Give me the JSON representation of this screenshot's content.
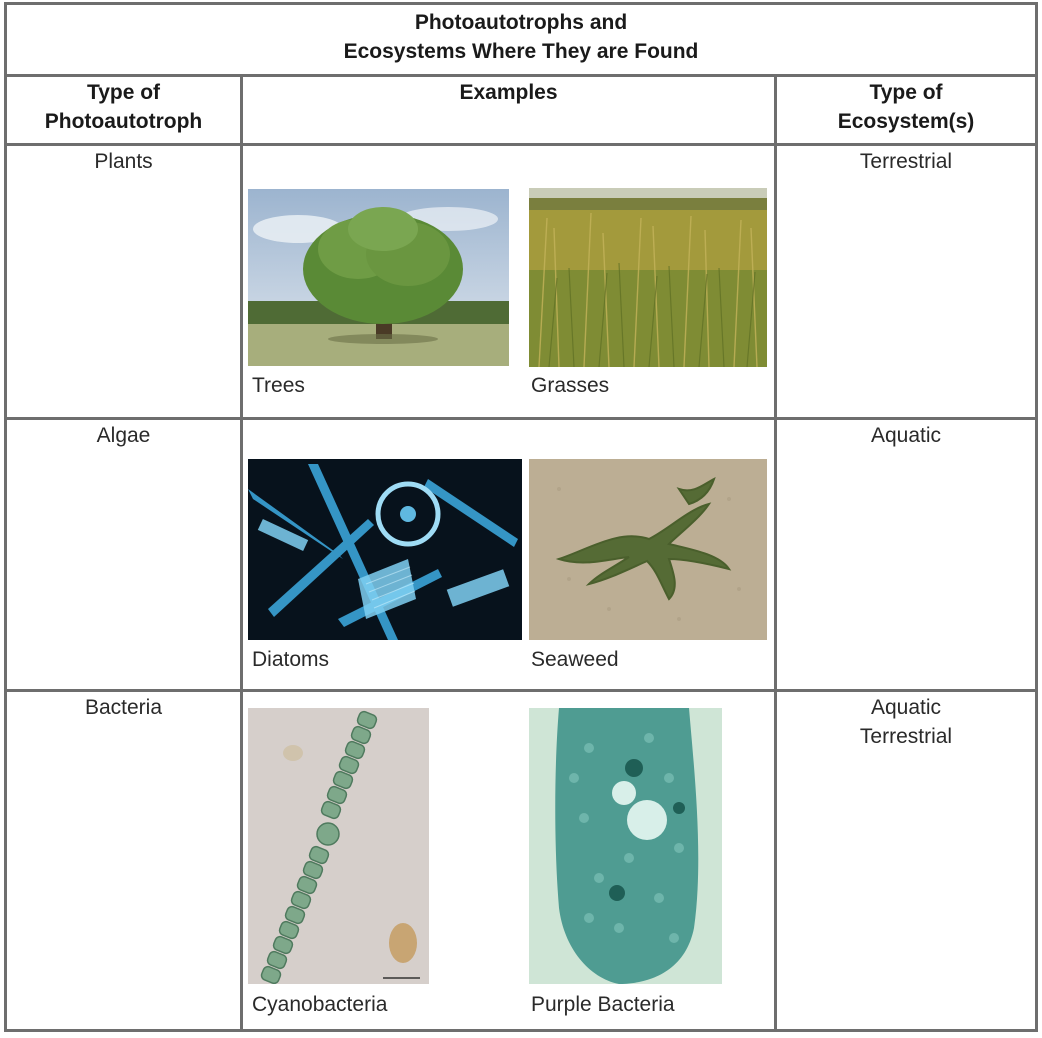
{
  "table": {
    "title_line1": "Photoautotrophs and",
    "title_line2": "Ecosystems Where They are Found",
    "headers": {
      "type_line1": "Type of",
      "type_line2": "Photoautotroph",
      "examples": "Examples",
      "eco_line1": "Type of",
      "eco_line2": "Ecosystem(s)"
    },
    "rows": [
      {
        "type": "Plants",
        "examples": [
          {
            "caption": "Trees",
            "image": "oak-tree-photo"
          },
          {
            "caption": "Grasses",
            "image": "grassland-photo"
          }
        ],
        "ecosystem_line1": "Terrestrial",
        "ecosystem_line2": ""
      },
      {
        "type": "Algae",
        "examples": [
          {
            "caption": "Diatoms",
            "image": "diatoms-micrograph"
          },
          {
            "caption": "Seaweed",
            "image": "seaweed-on-sand-photo"
          }
        ],
        "ecosystem_line1": "Aquatic",
        "ecosystem_line2": ""
      },
      {
        "type": "Bacteria",
        "examples": [
          {
            "caption": "Cyanobacteria",
            "image": "cyanobacteria-micrograph"
          },
          {
            "caption": "Purple Bacteria",
            "image": "purple-bacteria-micrograph"
          }
        ],
        "ecosystem_line1": "Aquatic",
        "ecosystem_line2": "Terrestrial"
      }
    ]
  }
}
